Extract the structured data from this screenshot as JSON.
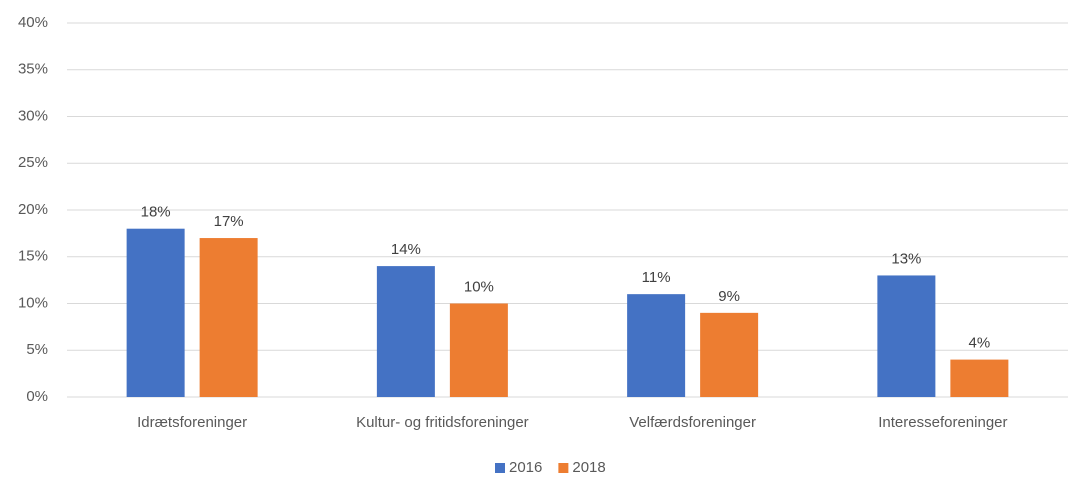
{
  "chart_data": {
    "type": "bar",
    "categories": [
      "Idrætsforeninger",
      "Kultur- og fritidsforeninger",
      "Velfærdsforeninger",
      "Interesseforeninger"
    ],
    "series": [
      {
        "name": "2016",
        "color": "#4472c4",
        "values": [
          18,
          14,
          11,
          13
        ],
        "value_labels": [
          "18%",
          "14%",
          "11%",
          "13%"
        ]
      },
      {
        "name": "2018",
        "color": "#ed7d31",
        "values": [
          17,
          10,
          9,
          4
        ],
        "value_labels": [
          "17%",
          "10%",
          "9%",
          "4%"
        ]
      }
    ],
    "ylim": [
      0,
      40
    ],
    "yticks": [
      {
        "value": 0,
        "label": "0%"
      },
      {
        "value": 5,
        "label": "5%"
      },
      {
        "value": 10,
        "label": "10%"
      },
      {
        "value": 15,
        "label": "15%"
      },
      {
        "value": 20,
        "label": "20%"
      },
      {
        "value": 25,
        "label": "25%"
      },
      {
        "value": 30,
        "label": "30%"
      },
      {
        "value": 35,
        "label": "35%"
      },
      {
        "value": 40,
        "label": "40%"
      }
    ],
    "grid": true,
    "legend": "bottom"
  }
}
